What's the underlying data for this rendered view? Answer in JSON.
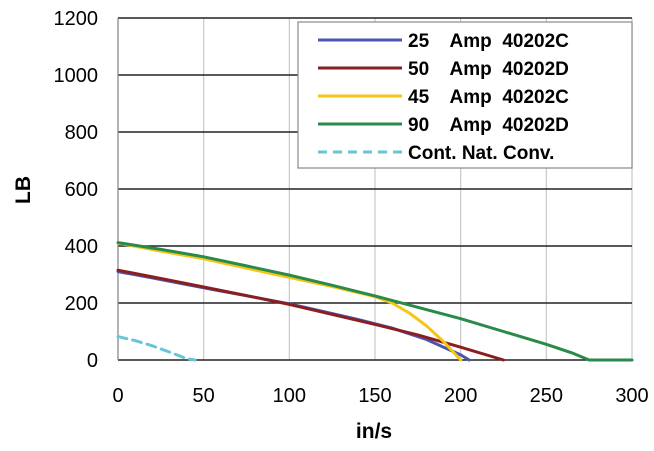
{
  "chart_data": {
    "type": "line",
    "title": "",
    "xlabel": "in/s",
    "ylabel": "LB",
    "xlim": [
      0,
      300
    ],
    "ylim": [
      0,
      1200
    ],
    "x_ticks": [
      "0",
      "50",
      "100",
      "150",
      "200",
      "250",
      "300"
    ],
    "y_ticks": [
      "0",
      "200",
      "400",
      "600",
      "800",
      "1000",
      "1200"
    ],
    "grid": true,
    "legend_position": "top-right",
    "series": [
      {
        "name": "25    Amp  40202C",
        "color": "#4b55b0",
        "dash": "solid",
        "x": [
          0,
          20,
          40,
          60,
          80,
          100,
          120,
          140,
          160,
          180,
          200,
          205
        ],
        "y": [
          310,
          288,
          265,
          242,
          220,
          197,
          170,
          142,
          112,
          72,
          18,
          0
        ]
      },
      {
        "name": "50    Amp  40202D",
        "color": "#8b1e1e",
        "dash": "solid",
        "x": [
          0,
          25,
          50,
          75,
          100,
          125,
          150,
          175,
          200,
          225
        ],
        "y": [
          315,
          286,
          256,
          226,
          195,
          160,
          125,
          88,
          45,
          0
        ]
      },
      {
        "name": "45    Amp  40202C",
        "color": "#f5c518",
        "dash": "solid",
        "x": [
          0,
          25,
          50,
          75,
          100,
          125,
          150,
          160,
          170,
          180,
          190,
          200
        ],
        "y": [
          410,
          382,
          355,
          322,
          290,
          258,
          222,
          200,
          165,
          120,
          65,
          0
        ]
      },
      {
        "name": "90    Amp  40202D",
        "color": "#2a8a4a",
        "dash": "solid",
        "x": [
          0,
          25,
          50,
          75,
          100,
          125,
          150,
          175,
          200,
          225,
          250,
          265,
          275,
          300
        ],
        "y": [
          412,
          388,
          362,
          330,
          298,
          262,
          225,
          185,
          145,
          100,
          55,
          25,
          0,
          0
        ]
      },
      {
        "name": "Cont. Nat. Conv.",
        "color": "#66c6d8",
        "dash": "dashed",
        "x": [
          0,
          10,
          20,
          30,
          40,
          45
        ],
        "y": [
          82,
          68,
          50,
          28,
          5,
          0
        ]
      }
    ]
  }
}
